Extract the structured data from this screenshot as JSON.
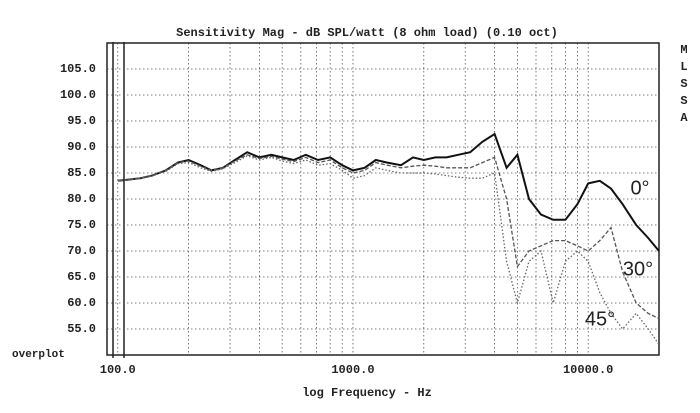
{
  "chart_data": {
    "type": "line",
    "title": "Sensitivity Mag - dB SPL/watt (8 ohm load) (0.10 oct)",
    "x_label": "log Frequency - Hz",
    "side_label": [
      "M",
      "L",
      "S",
      "S",
      "A"
    ],
    "corner_label": "overplot",
    "x_log": true,
    "grid": true,
    "xlim": [
      90,
      20000
    ],
    "xticks": [
      {
        "value": 100,
        "label": "100.0"
      },
      {
        "value": 1000,
        "label": "1000.0"
      },
      {
        "value": 10000,
        "label": "10000.0"
      }
    ],
    "xminor": [
      200,
      300,
      400,
      500,
      600,
      700,
      800,
      900,
      2000,
      3000,
      4000,
      5000,
      6000,
      7000,
      8000,
      9000
    ],
    "ylim": [
      50,
      110
    ],
    "yticks": [
      {
        "value": 55,
        "label": "55.0"
      },
      {
        "value": 60,
        "label": "60.0"
      },
      {
        "value": 65,
        "label": "65.0"
      },
      {
        "value": 70,
        "label": "70.0"
      },
      {
        "value": 75,
        "label": "75.0"
      },
      {
        "value": 80,
        "label": "80.0"
      },
      {
        "value": 85,
        "label": "85.0"
      },
      {
        "value": 90,
        "label": "90.0"
      },
      {
        "value": 95,
        "label": "95.0"
      },
      {
        "value": 100,
        "label": "100.0"
      },
      {
        "value": 105,
        "label": "105.0"
      }
    ],
    "x": [
      100,
      110,
      125,
      140,
      160,
      180,
      200,
      225,
      250,
      280,
      315,
      355,
      400,
      450,
      500,
      560,
      630,
      710,
      800,
      900,
      1000,
      1120,
      1250,
      1400,
      1600,
      1800,
      2000,
      2240,
      2500,
      2800,
      3150,
      3550,
      4000,
      4500,
      5000,
      5600,
      6300,
      7100,
      8000,
      9000,
      10000,
      11200,
      12500,
      14000,
      16000,
      18000,
      20000
    ],
    "series": [
      {
        "name": "0°",
        "color": "#111",
        "dash": "none",
        "values": [
          83.5,
          83.7,
          84,
          84.5,
          85.5,
          87,
          87.5,
          86.5,
          85.5,
          86,
          87.5,
          89,
          88,
          88.5,
          88,
          87.5,
          88.5,
          87.5,
          88,
          86.5,
          85.5,
          86,
          87.5,
          87,
          86.5,
          88,
          87.5,
          88,
          88,
          88.5,
          89,
          91,
          92.5,
          86,
          88.5,
          80,
          77,
          76,
          76,
          79,
          83,
          83.5,
          82,
          79,
          75,
          72.5,
          70
        ]
      },
      {
        "name": "30°",
        "color": "#555",
        "dash": "4 2",
        "values": [
          83.5,
          83.7,
          84,
          84.5,
          85.5,
          87,
          87.3,
          86.3,
          85.5,
          86,
          87.3,
          88.5,
          87.8,
          88.2,
          87.7,
          87.2,
          88,
          87,
          87.5,
          86,
          85,
          85.5,
          87,
          86.5,
          86,
          86.3,
          86.5,
          86.3,
          86,
          86,
          86,
          87,
          88,
          80,
          67,
          70,
          71,
          72,
          72,
          71,
          70,
          72,
          74.5,
          66,
          60,
          58,
          57
        ]
      },
      {
        "name": "45°",
        "color": "#666",
        "dash": "1.5 2",
        "values": [
          83.5,
          83.7,
          84,
          84.5,
          85.3,
          86.8,
          87,
          86,
          85.3,
          85.8,
          87,
          88.3,
          87.5,
          88,
          87.3,
          86.8,
          87.5,
          86.5,
          86.8,
          85.5,
          84,
          84.5,
          86,
          85.5,
          85,
          85,
          85,
          84.8,
          84.5,
          84.2,
          84,
          84,
          85,
          68,
          60,
          68,
          70,
          60,
          68,
          70,
          68,
          62,
          58,
          55,
          58,
          55,
          52
        ]
      }
    ]
  }
}
